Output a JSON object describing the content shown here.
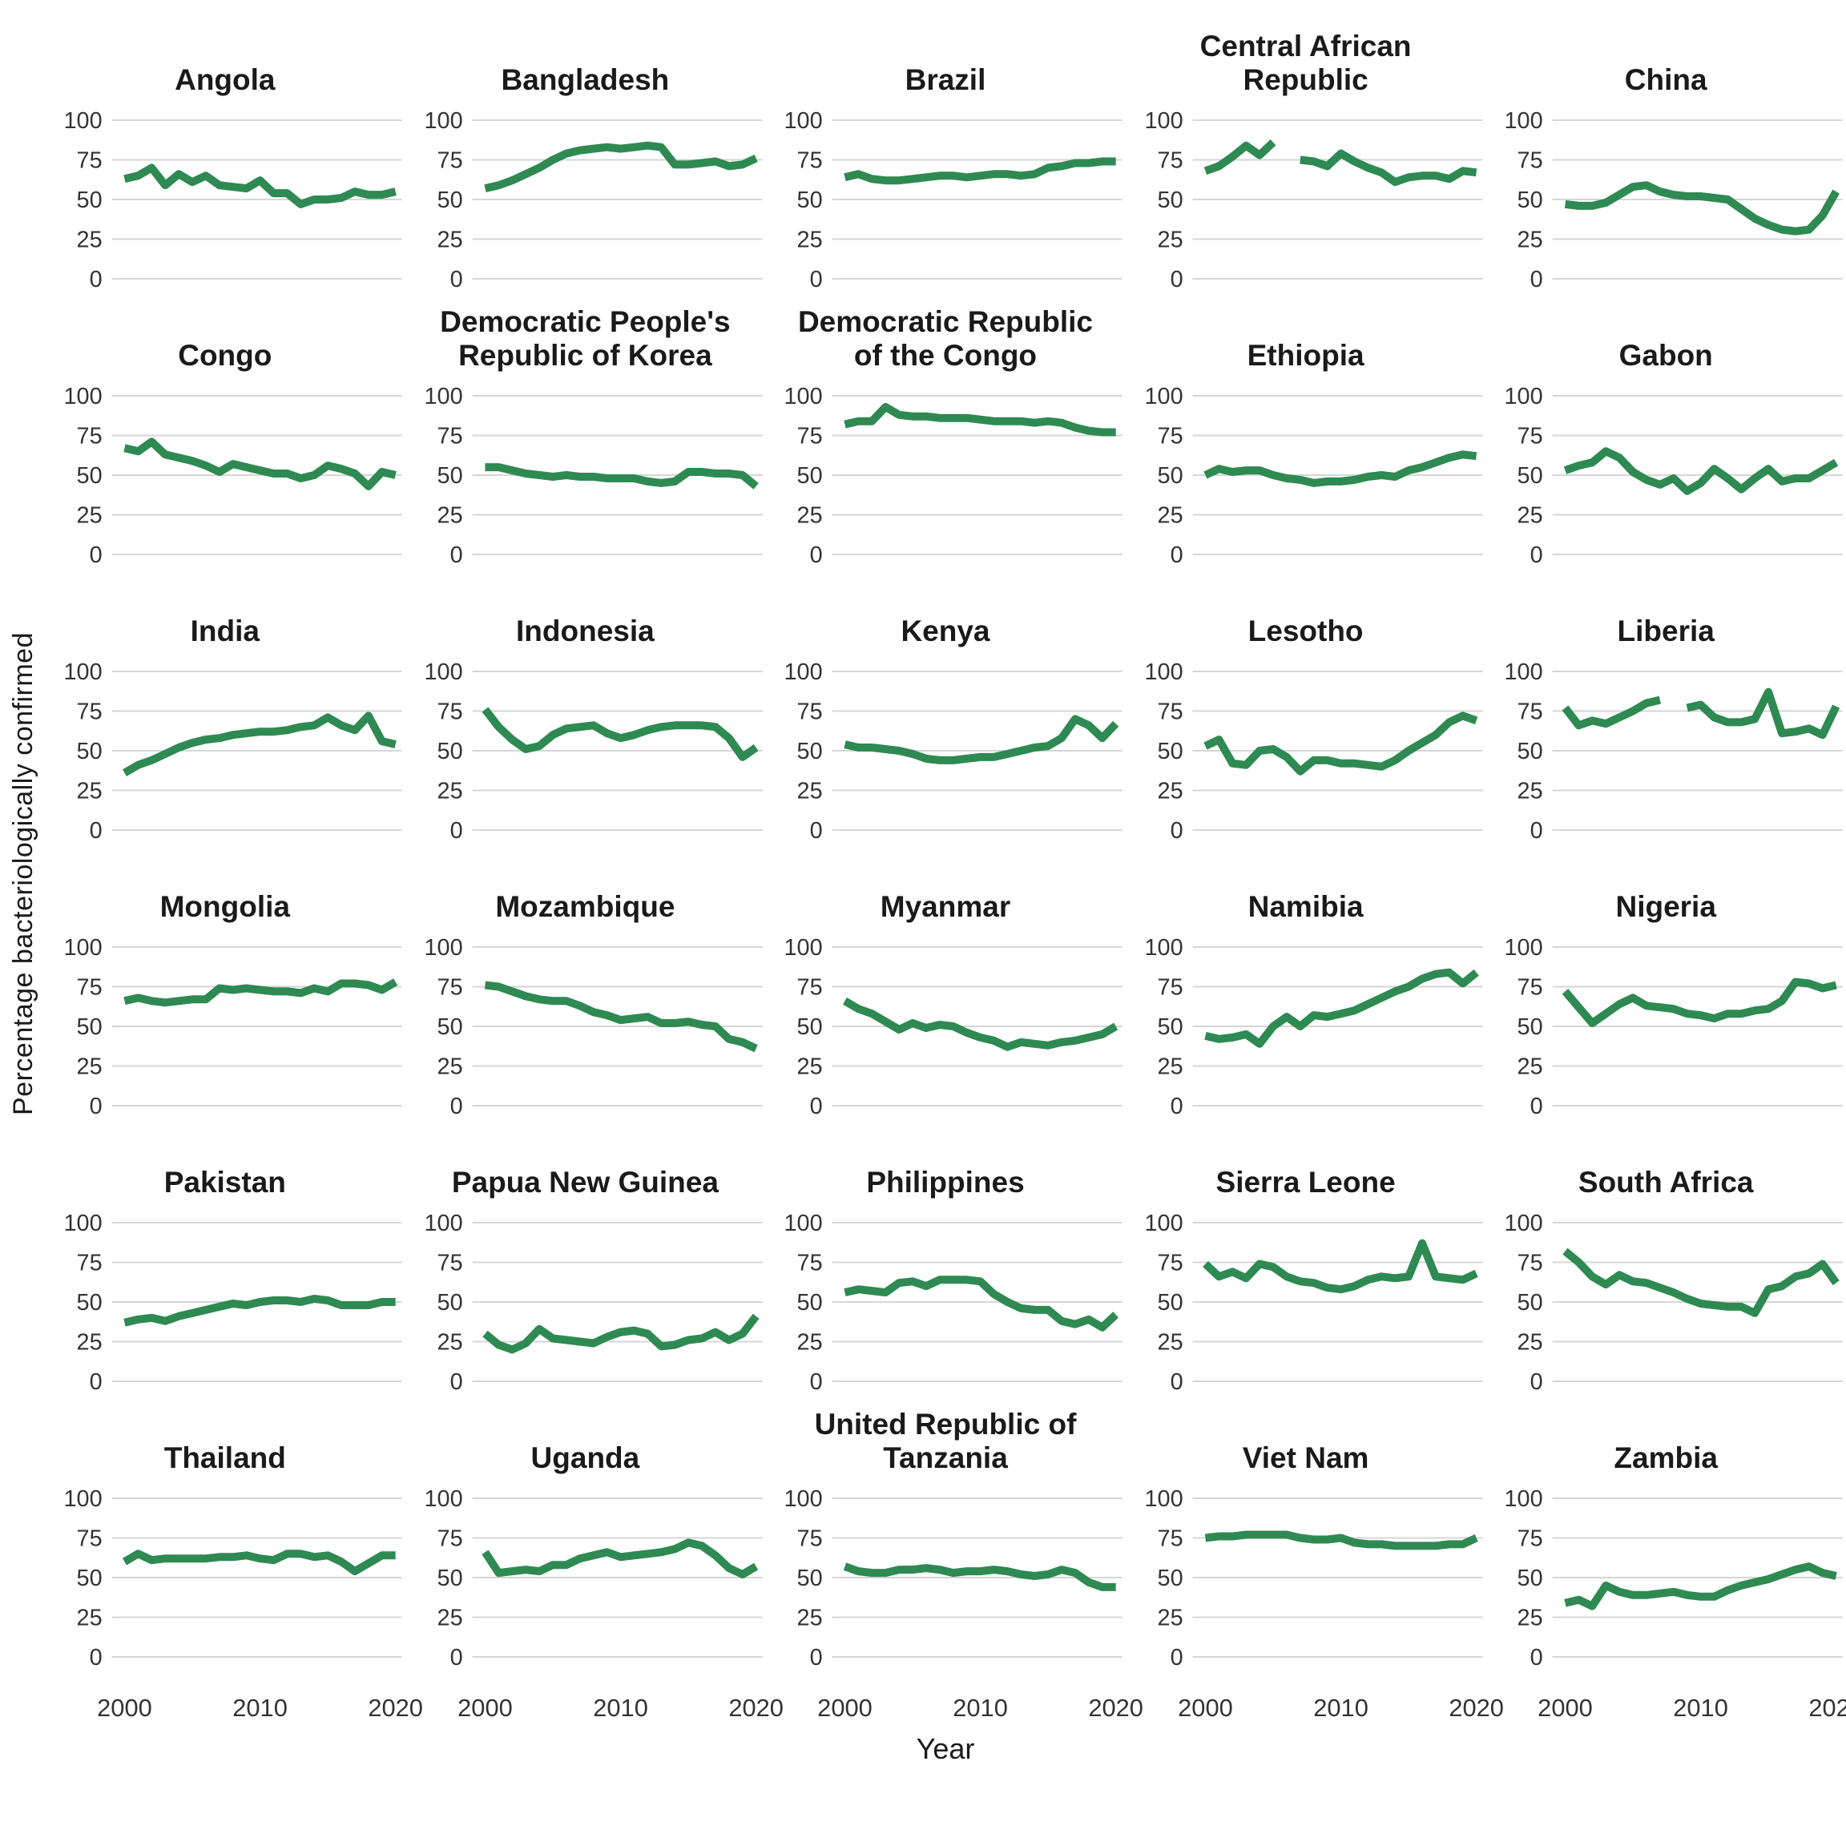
{
  "figure": {
    "y_axis_label": "Percentage bacteriologically confirmed",
    "x_axis_label": "Year",
    "line_color": "#2e8a52",
    "grid_color": "#d6d6d6",
    "tick_color": "#333333",
    "title_color": "#1a1a1a",
    "rows": 6,
    "cols": 5
  },
  "chart_data": {
    "type": "line",
    "title": "",
    "xlabel": "Year",
    "ylabel": "Percentage bacteriologically confirmed",
    "x": [
      2000,
      2001,
      2002,
      2003,
      2004,
      2005,
      2006,
      2007,
      2008,
      2009,
      2010,
      2011,
      2012,
      2013,
      2014,
      2015,
      2016,
      2017,
      2018,
      2019,
      2020
    ],
    "x_ticks": [
      2000,
      2010,
      2020
    ],
    "y_ticks": [
      0,
      25,
      50,
      75,
      100
    ],
    "ylim": [
      0,
      100
    ],
    "grid": true,
    "legend": "none",
    "series": [
      {
        "name": "Angola",
        "label": "Angola",
        "values": [
          63,
          65,
          70,
          59,
          66,
          61,
          65,
          59,
          58,
          57,
          62,
          54,
          54,
          47,
          50,
          50,
          51,
          55,
          53,
          53,
          55
        ]
      },
      {
        "name": "Bangladesh",
        "label": "Bangladesh",
        "values": [
          57,
          59,
          62,
          66,
          70,
          75,
          79,
          81,
          82,
          83,
          82,
          83,
          84,
          83,
          72,
          72,
          73,
          74,
          71,
          72,
          76
        ]
      },
      {
        "name": "Brazil",
        "label": "Brazil",
        "values": [
          64,
          66,
          63,
          62,
          62,
          63,
          64,
          65,
          65,
          64,
          65,
          66,
          66,
          65,
          66,
          70,
          71,
          73,
          73,
          74,
          74
        ]
      },
      {
        "name": "Central African Republic",
        "label": "Central African\nRepublic",
        "values": [
          68,
          71,
          77,
          84,
          78,
          86,
          null,
          75,
          74,
          71,
          79,
          74,
          70,
          67,
          61,
          64,
          65,
          65,
          63,
          68,
          67
        ]
      },
      {
        "name": "China",
        "label": "China",
        "values": [
          47,
          46,
          46,
          48,
          53,
          58,
          59,
          55,
          53,
          52,
          52,
          51,
          50,
          44,
          38,
          34,
          31,
          30,
          31,
          40,
          55
        ]
      },
      {
        "name": "Congo",
        "label": "Congo",
        "values": [
          67,
          65,
          71,
          63,
          61,
          59,
          56,
          52,
          57,
          55,
          53,
          51,
          51,
          48,
          50,
          56,
          54,
          51,
          43,
          52,
          50
        ]
      },
      {
        "name": "Democratic People's Republic of Korea",
        "label": "Democratic People's\nRepublic of Korea",
        "values": [
          55,
          55,
          53,
          51,
          50,
          49,
          50,
          49,
          49,
          48,
          48,
          48,
          46,
          45,
          46,
          52,
          52,
          51,
          51,
          50,
          43
        ]
      },
      {
        "name": "Democratic Republic of the Congo",
        "label": "Democratic Republic\nof the Congo",
        "values": [
          82,
          84,
          84,
          93,
          88,
          87,
          87,
          86,
          86,
          86,
          85,
          84,
          84,
          84,
          83,
          84,
          83,
          80,
          78,
          77,
          77
        ]
      },
      {
        "name": "Ethiopia",
        "label": "Ethiopia",
        "values": [
          50,
          54,
          52,
          53,
          53,
          50,
          48,
          47,
          45,
          46,
          46,
          47,
          49,
          50,
          49,
          53,
          55,
          58,
          61,
          63,
          62
        ]
      },
      {
        "name": "Gabon",
        "label": "Gabon",
        "values": [
          53,
          56,
          58,
          65,
          61,
          52,
          47,
          44,
          48,
          40,
          45,
          54,
          48,
          41,
          48,
          54,
          46,
          48,
          48,
          53,
          58
        ]
      },
      {
        "name": "India",
        "label": "India",
        "values": [
          36,
          41,
          44,
          48,
          52,
          55,
          57,
          58,
          60,
          61,
          62,
          62,
          63,
          65,
          66,
          71,
          66,
          63,
          72,
          56,
          54
        ]
      },
      {
        "name": "Indonesia",
        "label": "Indonesia",
        "values": [
          76,
          65,
          57,
          51,
          53,
          60,
          64,
          65,
          66,
          61,
          58,
          60,
          63,
          65,
          66,
          66,
          66,
          65,
          58,
          46,
          52
        ]
      },
      {
        "name": "Kenya",
        "label": "Kenya",
        "values": [
          54,
          52,
          52,
          51,
          50,
          48,
          45,
          44,
          44,
          45,
          46,
          46,
          48,
          50,
          52,
          53,
          58,
          70,
          66,
          58,
          67
        ]
      },
      {
        "name": "Lesotho",
        "label": "Lesotho",
        "values": [
          53,
          57,
          42,
          41,
          50,
          51,
          46,
          37,
          44,
          44,
          42,
          42,
          41,
          40,
          44,
          50,
          55,
          60,
          68,
          72,
          69
        ]
      },
      {
        "name": "Liberia",
        "label": "Liberia",
        "values": [
          77,
          66,
          69,
          67,
          71,
          75,
          80,
          82,
          null,
          77,
          79,
          71,
          68,
          68,
          70,
          87,
          61,
          62,
          64,
          60,
          78
        ]
      },
      {
        "name": "Mongolia",
        "label": "Mongolia",
        "values": [
          66,
          68,
          66,
          65,
          66,
          67,
          67,
          74,
          73,
          74,
          73,
          72,
          72,
          71,
          74,
          72,
          77,
          77,
          76,
          73,
          78
        ]
      },
      {
        "name": "Mozambique",
        "label": "Mozambique",
        "values": [
          76,
          75,
          72,
          69,
          67,
          66,
          66,
          63,
          59,
          57,
          54,
          55,
          56,
          52,
          52,
          53,
          51,
          50,
          42,
          40,
          36
        ]
      },
      {
        "name": "Myanmar",
        "label": "Myanmar",
        "values": [
          66,
          61,
          58,
          53,
          48,
          52,
          49,
          51,
          50,
          46,
          43,
          41,
          37,
          40,
          39,
          38,
          40,
          41,
          43,
          45,
          50
        ]
      },
      {
        "name": "Namibia",
        "label": "Namibia",
        "values": [
          44,
          42,
          43,
          45,
          39,
          50,
          56,
          50,
          57,
          56,
          58,
          60,
          64,
          68,
          72,
          75,
          80,
          83,
          84,
          77,
          84
        ]
      },
      {
        "name": "Nigeria",
        "label": "Nigeria",
        "values": [
          72,
          62,
          52,
          58,
          64,
          68,
          63,
          62,
          61,
          58,
          57,
          55,
          58,
          58,
          60,
          61,
          66,
          78,
          77,
          74,
          76
        ]
      },
      {
        "name": "Pakistan",
        "label": "Pakistan",
        "values": [
          37,
          39,
          40,
          38,
          41,
          43,
          45,
          47,
          49,
          48,
          50,
          51,
          51,
          50,
          52,
          51,
          48,
          48,
          48,
          50,
          50
        ]
      },
      {
        "name": "Papua New Guinea",
        "label": "Papua New Guinea",
        "values": [
          30,
          23,
          20,
          24,
          33,
          27,
          26,
          25,
          24,
          28,
          31,
          32,
          30,
          22,
          23,
          26,
          27,
          31,
          26,
          30,
          41
        ]
      },
      {
        "name": "Philippines",
        "label": "Philippines",
        "values": [
          56,
          58,
          57,
          56,
          62,
          63,
          60,
          64,
          64,
          64,
          63,
          55,
          50,
          46,
          45,
          45,
          38,
          36,
          39,
          34,
          42
        ]
      },
      {
        "name": "Sierra Leone",
        "label": "Sierra Leone",
        "values": [
          74,
          66,
          69,
          65,
          74,
          72,
          66,
          63,
          62,
          59,
          58,
          60,
          64,
          66,
          65,
          66,
          87,
          66,
          65,
          64,
          68
        ]
      },
      {
        "name": "South Africa",
        "label": "South Africa",
        "values": [
          82,
          75,
          66,
          61,
          67,
          63,
          62,
          59,
          56,
          52,
          49,
          48,
          47,
          47,
          43,
          58,
          60,
          66,
          68,
          74,
          62
        ]
      },
      {
        "name": "Thailand",
        "label": "Thailand",
        "values": [
          60,
          65,
          61,
          62,
          62,
          62,
          62,
          63,
          63,
          64,
          62,
          61,
          65,
          65,
          63,
          64,
          60,
          54,
          59,
          64,
          64
        ]
      },
      {
        "name": "Uganda",
        "label": "Uganda",
        "values": [
          66,
          53,
          54,
          55,
          54,
          58,
          58,
          62,
          64,
          66,
          63,
          64,
          65,
          66,
          68,
          72,
          70,
          64,
          56,
          52,
          57
        ]
      },
      {
        "name": "United Republic of Tanzania",
        "label": "United Republic of\nTanzania",
        "values": [
          57,
          54,
          53,
          53,
          55,
          55,
          56,
          55,
          53,
          54,
          54,
          55,
          54,
          52,
          51,
          52,
          55,
          53,
          47,
          44,
          44
        ]
      },
      {
        "name": "Viet Nam",
        "label": "Viet Nam",
        "values": [
          75,
          76,
          76,
          77,
          77,
          77,
          77,
          75,
          74,
          74,
          75,
          72,
          71,
          71,
          70,
          70,
          70,
          70,
          71,
          71,
          75
        ]
      },
      {
        "name": "Zambia",
        "label": "Zambia",
        "values": [
          34,
          36,
          32,
          45,
          41,
          39,
          39,
          40,
          41,
          39,
          38,
          38,
          42,
          45,
          47,
          49,
          52,
          55,
          57,
          53,
          51
        ]
      }
    ]
  }
}
